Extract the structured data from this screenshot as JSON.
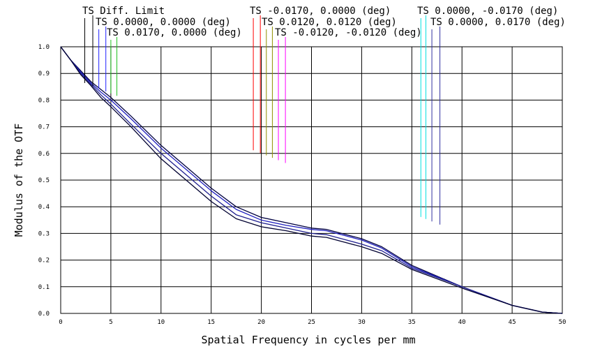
{
  "chart_data": {
    "type": "line",
    "title": "",
    "xlabel": "Spatial Frequency in cycles per mm",
    "ylabel": "Modulus of the OTF",
    "xlim": [
      0,
      50
    ],
    "ylim": [
      0,
      1.0
    ],
    "x_ticks": [
      "0",
      "5",
      "10",
      "15",
      "20",
      "25",
      "30",
      "35",
      "40",
      "45",
      "50"
    ],
    "y_ticks": [
      "0.0",
      "0.1",
      "0.2",
      "0.3",
      "0.4",
      "0.5",
      "0.6",
      "0.7",
      "0.8",
      "0.9",
      "1.0"
    ],
    "grid": true,
    "legend_placement": "top",
    "legend": [
      {
        "label": "TS Diff. Limit",
        "colors": [
          "#000000",
          "#000000"
        ],
        "x_marks": [
          2.4,
          3.2
        ]
      },
      {
        "label": "TS 0.0000, 0.0000 (deg)",
        "colors": [
          "#2020ff",
          "#2020ff"
        ],
        "x_marks": [
          3.8,
          4.5
        ]
      },
      {
        "label": "TS 0.0170, 0.0000 (deg)",
        "colors": [
          "#20c020",
          "#20c020"
        ],
        "x_marks": [
          5.0,
          5.6
        ]
      },
      {
        "label": "TS -0.0170, 0.0000 (deg)",
        "colors": [
          "#ff0000",
          "#ff0000"
        ],
        "x_marks": [
          19.2,
          19.9
        ]
      },
      {
        "label": "TS 0.0120, 0.0120 (deg)",
        "colors": [
          "#909000",
          "#909000"
        ],
        "x_marks": [
          20.5,
          21.1
        ]
      },
      {
        "label": "TS -0.0120, -0.0120 (deg)",
        "colors": [
          "#ff00ff",
          "#ff00ff"
        ],
        "x_marks": [
          21.7,
          22.4
        ]
      },
      {
        "label": "TS 0.0000, -0.0170 (deg)",
        "colors": [
          "#00e0e0",
          "#00e0e0"
        ],
        "x_marks": [
          35.9,
          36.4
        ]
      },
      {
        "label": "TS 0.0000, 0.0170 (deg)",
        "colors": [
          "#3030a0",
          "#3030a0"
        ],
        "x_marks": [
          37.0,
          37.8
        ]
      }
    ],
    "series": [
      {
        "color": "#000040",
        "x": [
          0,
          1,
          2,
          3,
          4,
          5,
          7,
          10,
          12.5,
          15,
          17.5,
          20,
          22.5,
          25,
          26.5,
          28,
          30,
          32,
          35,
          40,
          45,
          48,
          50
        ],
        "y": [
          1.0,
          0.95,
          0.91,
          0.87,
          0.84,
          0.81,
          0.74,
          0.63,
          0.55,
          0.47,
          0.4,
          0.36,
          0.34,
          0.32,
          0.315,
          0.3,
          0.28,
          0.25,
          0.18,
          0.1,
          0.03,
          0.005,
          0.0
        ]
      },
      {
        "color": "#2020c0",
        "x": [
          0,
          1,
          2,
          3,
          4,
          5,
          7,
          10,
          12.5,
          15,
          17.5,
          20,
          22.5,
          25,
          26.5,
          28,
          30,
          32,
          35,
          40,
          45,
          48,
          50
        ],
        "y": [
          1.0,
          0.95,
          0.905,
          0.865,
          0.83,
          0.8,
          0.73,
          0.62,
          0.54,
          0.46,
          0.39,
          0.35,
          0.33,
          0.315,
          0.31,
          0.295,
          0.275,
          0.245,
          0.175,
          0.1,
          0.03,
          0.005,
          0.0
        ]
      },
      {
        "color": "#202090",
        "x": [
          0,
          1,
          2,
          3,
          4,
          5,
          7,
          10,
          12.5,
          15,
          17.5,
          20,
          22.5,
          25,
          26.5,
          28,
          30,
          32,
          35,
          40,
          45,
          48,
          50
        ],
        "y": [
          1.0,
          0.95,
          0.9,
          0.86,
          0.82,
          0.785,
          0.71,
          0.6,
          0.52,
          0.44,
          0.37,
          0.34,
          0.32,
          0.3,
          0.295,
          0.28,
          0.26,
          0.235,
          0.17,
          0.1,
          0.03,
          0.005,
          0.0
        ]
      },
      {
        "color": "#000030",
        "x": [
          0,
          1,
          2,
          3,
          4,
          5,
          7,
          10,
          12.5,
          15,
          17.5,
          20,
          22.5,
          25,
          26.5,
          28,
          30,
          32,
          35,
          40,
          45,
          48,
          50
        ],
        "y": [
          1.0,
          0.95,
          0.895,
          0.855,
          0.81,
          0.775,
          0.7,
          0.58,
          0.5,
          0.42,
          0.355,
          0.325,
          0.31,
          0.29,
          0.285,
          0.27,
          0.25,
          0.225,
          0.165,
          0.095,
          0.03,
          0.005,
          0.0
        ]
      }
    ]
  }
}
